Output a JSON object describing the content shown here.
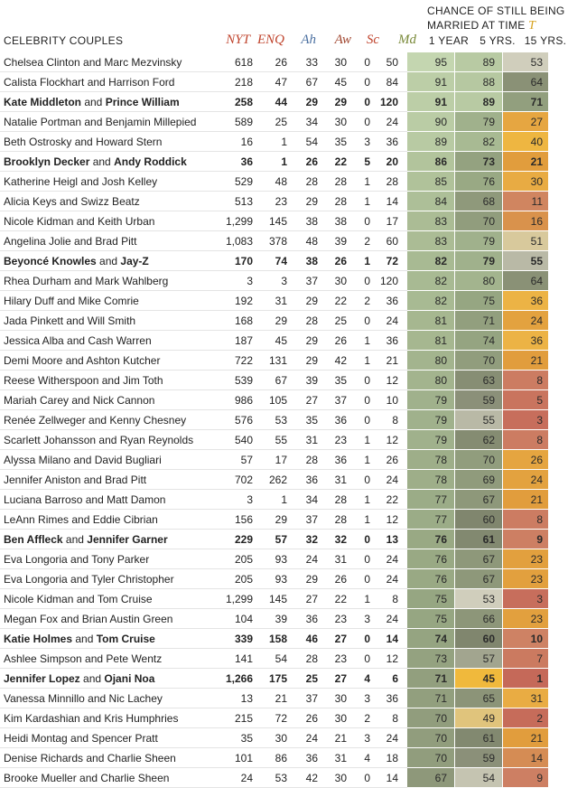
{
  "header": {
    "couples_label": "CELEBRITY COUPLES",
    "chance_title_line1": "CHANCE OF STILL BEING",
    "chance_title_line2": "MARRIED AT TIME",
    "time_symbol": "T",
    "columns": [
      "NYT",
      "ENQ",
      "Ah",
      "Aw",
      "Sc",
      "Md"
    ],
    "column_colors": [
      "#c0452e",
      "#c0452e",
      "#4a6fa0",
      "#a0452e",
      "#c0452e",
      "#7a8a3a"
    ],
    "prob_columns": [
      "1 YEAR",
      "5 YRS.",
      "15 YRS."
    ]
  },
  "rows": [
    {
      "n1": "Chelsea Clinton",
      "n2": "Marc Mezvinsky",
      "bold": false,
      "nyt": "618",
      "enq": "26",
      "ah": "33",
      "aw": "30",
      "sc": "0",
      "md": "50",
      "p1": "95",
      "p5": "89",
      "p15": "53"
    },
    {
      "n1": "Calista Flockhart",
      "n2": "Harrison Ford",
      "bold": false,
      "nyt": "218",
      "enq": "47",
      "ah": "67",
      "aw": "45",
      "sc": "0",
      "md": "84",
      "p1": "91",
      "p5": "88",
      "p15": "64"
    },
    {
      "n1": "Kate Middleton",
      "n2": "Prince William",
      "bold": true,
      "nyt": "258",
      "enq": "44",
      "ah": "29",
      "aw": "29",
      "sc": "0",
      "md": "120",
      "p1": "91",
      "p5": "89",
      "p15": "71"
    },
    {
      "n1": "Natalie Portman",
      "n2": "Benjamin Millepied",
      "bold": false,
      "nyt": "589",
      "enq": "25",
      "ah": "34",
      "aw": "30",
      "sc": "0",
      "md": "24",
      "p1": "90",
      "p5": "79",
      "p15": "27"
    },
    {
      "n1": "Beth Ostrosky",
      "n2": "Howard Stern",
      "bold": false,
      "nyt": "16",
      "enq": "1",
      "ah": "54",
      "aw": "35",
      "sc": "3",
      "md": "36",
      "p1": "89",
      "p5": "82",
      "p15": "40"
    },
    {
      "n1": "Brooklyn Decker",
      "n2": "Andy Roddick",
      "bold": true,
      "nyt": "36",
      "enq": "1",
      "ah": "26",
      "aw": "22",
      "sc": "5",
      "md": "20",
      "p1": "86",
      "p5": "73",
      "p15": "21"
    },
    {
      "n1": "Katherine Heigl",
      "n2": "Josh Kelley",
      "bold": false,
      "nyt": "529",
      "enq": "48",
      "ah": "28",
      "aw": "28",
      "sc": "1",
      "md": "28",
      "p1": "85",
      "p5": "76",
      "p15": "30"
    },
    {
      "n1": "Alicia Keys",
      "n2": "Swizz Beatz",
      "bold": false,
      "nyt": "513",
      "enq": "23",
      "ah": "29",
      "aw": "28",
      "sc": "1",
      "md": "14",
      "p1": "84",
      "p5": "68",
      "p15": "11"
    },
    {
      "n1": "Nicole Kidman",
      "n2": "Keith Urban",
      "bold": false,
      "nyt": "1,299",
      "enq": "145",
      "ah": "38",
      "aw": "38",
      "sc": "0",
      "md": "17",
      "p1": "83",
      "p5": "70",
      "p15": "16"
    },
    {
      "n1": "Angelina Jolie",
      "n2": "Brad Pitt",
      "bold": false,
      "nyt": "1,083",
      "enq": "378",
      "ah": "48",
      "aw": "39",
      "sc": "2",
      "md": "60",
      "p1": "83",
      "p5": "79",
      "p15": "51"
    },
    {
      "n1": "Beyoncé Knowles",
      "n2": "Jay-Z",
      "bold": true,
      "nyt": "170",
      "enq": "74",
      "ah": "38",
      "aw": "26",
      "sc": "1",
      "md": "72",
      "p1": "82",
      "p5": "79",
      "p15": "55"
    },
    {
      "n1": "Rhea Durham",
      "n2": "Mark Wahlberg",
      "bold": false,
      "nyt": "3",
      "enq": "3",
      "ah": "37",
      "aw": "30",
      "sc": "0",
      "md": "120",
      "p1": "82",
      "p5": "80",
      "p15": "64"
    },
    {
      "n1": "Hilary Duff",
      "n2": "Mike Comrie",
      "bold": false,
      "nyt": "192",
      "enq": "31",
      "ah": "29",
      "aw": "22",
      "sc": "2",
      "md": "36",
      "p1": "82",
      "p5": "75",
      "p15": "36"
    },
    {
      "n1": "Jada Pinkett",
      "n2": "Will Smith",
      "bold": false,
      "nyt": "168",
      "enq": "29",
      "ah": "28",
      "aw": "25",
      "sc": "0",
      "md": "24",
      "p1": "81",
      "p5": "71",
      "p15": "24"
    },
    {
      "n1": "Jessica Alba",
      "n2": "Cash Warren",
      "bold": false,
      "nyt": "187",
      "enq": "45",
      "ah": "29",
      "aw": "26",
      "sc": "1",
      "md": "36",
      "p1": "81",
      "p5": "74",
      "p15": "36"
    },
    {
      "n1": "Demi Moore",
      "n2": "Ashton Kutcher",
      "bold": false,
      "nyt": "722",
      "enq": "131",
      "ah": "29",
      "aw": "42",
      "sc": "1",
      "md": "21",
      "p1": "80",
      "p5": "70",
      "p15": "21"
    },
    {
      "n1": "Reese Witherspoon",
      "n2": "Jim Toth",
      "bold": false,
      "nyt": "539",
      "enq": "67",
      "ah": "39",
      "aw": "35",
      "sc": "0",
      "md": "12",
      "p1": "80",
      "p5": "63",
      "p15": "8"
    },
    {
      "n1": "Mariah Carey",
      "n2": "Nick Cannon",
      "bold": false,
      "nyt": "986",
      "enq": "105",
      "ah": "27",
      "aw": "37",
      "sc": "0",
      "md": "10",
      "p1": "79",
      "p5": "59",
      "p15": "5"
    },
    {
      "n1": "Renée Zellweger",
      "n2": "Kenny Chesney",
      "bold": false,
      "nyt": "576",
      "enq": "53",
      "ah": "35",
      "aw": "36",
      "sc": "0",
      "md": "8",
      "p1": "79",
      "p5": "55",
      "p15": "3"
    },
    {
      "n1": "Scarlett Johansson",
      "n2": "Ryan Reynolds",
      "bold": false,
      "nyt": "540",
      "enq": "55",
      "ah": "31",
      "aw": "23",
      "sc": "1",
      "md": "12",
      "p1": "79",
      "p5": "62",
      "p15": "8"
    },
    {
      "n1": "Alyssa Milano",
      "n2": "David Bugliari",
      "bold": false,
      "nyt": "57",
      "enq": "17",
      "ah": "28",
      "aw": "36",
      "sc": "1",
      "md": "26",
      "p1": "78",
      "p5": "70",
      "p15": "26"
    },
    {
      "n1": "Jennifer Aniston",
      "n2": "Brad Pitt",
      "bold": false,
      "nyt": "702",
      "enq": "262",
      "ah": "36",
      "aw": "31",
      "sc": "0",
      "md": "24",
      "p1": "78",
      "p5": "69",
      "p15": "24"
    },
    {
      "n1": "Luciana Barroso",
      "n2": "Matt Damon",
      "bold": false,
      "nyt": "3",
      "enq": "1",
      "ah": "34",
      "aw": "28",
      "sc": "1",
      "md": "22",
      "p1": "77",
      "p5": "67",
      "p15": "21"
    },
    {
      "n1": "LeAnn Rimes",
      "n2": "Eddie Cibrian",
      "bold": false,
      "nyt": "156",
      "enq": "29",
      "ah": "37",
      "aw": "28",
      "sc": "1",
      "md": "12",
      "p1": "77",
      "p5": "60",
      "p15": "8"
    },
    {
      "n1": "Ben Affleck",
      "n2": "Jennifer Garner",
      "bold": true,
      "nyt": "229",
      "enq": "57",
      "ah": "32",
      "aw": "32",
      "sc": "0",
      "md": "13",
      "p1": "76",
      "p5": "61",
      "p15": "9"
    },
    {
      "n1": "Eva Longoria",
      "n2": "Tony Parker",
      "bold": false,
      "nyt": "205",
      "enq": "93",
      "ah": "24",
      "aw": "31",
      "sc": "0",
      "md": "24",
      "p1": "76",
      "p5": "67",
      "p15": "23"
    },
    {
      "n1": "Eva Longoria",
      "n2": "Tyler Christopher",
      "bold": false,
      "nyt": "205",
      "enq": "93",
      "ah": "29",
      "aw": "26",
      "sc": "0",
      "md": "24",
      "p1": "76",
      "p5": "67",
      "p15": "23"
    },
    {
      "n1": "Nicole Kidman",
      "n2": "Tom Cruise",
      "bold": false,
      "nyt": "1,299",
      "enq": "145",
      "ah": "27",
      "aw": "22",
      "sc": "1",
      "md": "8",
      "p1": "75",
      "p5": "53",
      "p15": "3"
    },
    {
      "n1": "Megan Fox",
      "n2": "Brian Austin Green",
      "bold": false,
      "nyt": "104",
      "enq": "39",
      "ah": "36",
      "aw": "23",
      "sc": "3",
      "md": "24",
      "p1": "75",
      "p5": "66",
      "p15": "23"
    },
    {
      "n1": "Katie Holmes",
      "n2": "Tom Cruise",
      "bold": true,
      "nyt": "339",
      "enq": "158",
      "ah": "46",
      "aw": "27",
      "sc": "0",
      "md": "14",
      "p1": "74",
      "p5": "60",
      "p15": "10"
    },
    {
      "n1": "Ashlee Simpson",
      "n2": "Pete Wentz",
      "bold": false,
      "nyt": "141",
      "enq": "54",
      "ah": "28",
      "aw": "23",
      "sc": "0",
      "md": "12",
      "p1": "73",
      "p5": "57",
      "p15": "7"
    },
    {
      "n1": "Jennifer Lopez",
      "n2": "Ojani Noa",
      "bold": true,
      "nyt": "1,266",
      "enq": "175",
      "ah": "25",
      "aw": "27",
      "sc": "4",
      "md": "6",
      "p1": "71",
      "p5": "45",
      "p15": "1"
    },
    {
      "n1": "Vanessa Minnillo",
      "n2": "Nic Lachey",
      "bold": false,
      "nyt": "13",
      "enq": "21",
      "ah": "37",
      "aw": "30",
      "sc": "3",
      "md": "36",
      "p1": "71",
      "p5": "65",
      "p15": "31"
    },
    {
      "n1": "Kim Kardashian",
      "n2": "Kris Humphries",
      "bold": false,
      "nyt": "215",
      "enq": "72",
      "ah": "26",
      "aw": "30",
      "sc": "2",
      "md": "8",
      "p1": "70",
      "p5": "49",
      "p15": "2"
    },
    {
      "n1": "Heidi Montag",
      "n2": "Spencer Pratt",
      "bold": false,
      "nyt": "35",
      "enq": "30",
      "ah": "24",
      "aw": "21",
      "sc": "3",
      "md": "24",
      "p1": "70",
      "p5": "61",
      "p15": "21"
    },
    {
      "n1": "Denise Richards",
      "n2": "Charlie Sheen",
      "bold": false,
      "nyt": "101",
      "enq": "86",
      "ah": "36",
      "aw": "31",
      "sc": "4",
      "md": "18",
      "p1": "70",
      "p5": "59",
      "p15": "14"
    },
    {
      "n1": "Brooke Mueller",
      "n2": "Charlie Sheen",
      "bold": false,
      "nyt": "24",
      "enq": "53",
      "ah": "42",
      "aw": "30",
      "sc": "0",
      "md": "14",
      "p1": "67",
      "p5": "54",
      "p15": "9"
    }
  ]
}
